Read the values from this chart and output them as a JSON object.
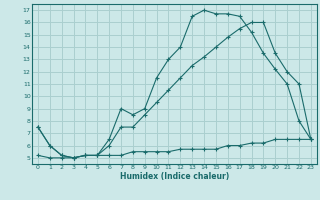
{
  "xlabel": "Humidex (Indice chaleur)",
  "bg_color": "#cce8e8",
  "line_color": "#1a6b6b",
  "grid_color": "#aacfcf",
  "xlim": [
    -0.5,
    23.5
  ],
  "ylim": [
    4.5,
    17.5
  ],
  "xticks": [
    0,
    1,
    2,
    3,
    4,
    5,
    6,
    7,
    8,
    9,
    10,
    11,
    12,
    13,
    14,
    15,
    16,
    17,
    18,
    19,
    20,
    21,
    22,
    23
  ],
  "yticks": [
    5,
    6,
    7,
    8,
    9,
    10,
    11,
    12,
    13,
    14,
    15,
    16,
    17
  ],
  "line1_x": [
    0,
    1,
    2,
    3,
    4,
    5,
    6,
    7,
    8,
    9,
    10,
    11,
    12,
    13,
    14,
    15,
    16,
    17,
    18,
    19,
    20,
    21,
    22,
    23
  ],
  "line1_y": [
    7.5,
    6.0,
    5.2,
    5.0,
    5.2,
    5.2,
    6.5,
    9.0,
    8.5,
    9.0,
    11.5,
    13.0,
    14.0,
    16.5,
    17.0,
    16.7,
    16.7,
    16.5,
    15.2,
    13.5,
    12.2,
    11.0,
    8.0,
    6.5
  ],
  "line2_x": [
    0,
    1,
    2,
    3,
    4,
    5,
    6,
    7,
    8,
    9,
    10,
    11,
    12,
    13,
    14,
    15,
    16,
    17,
    18,
    19,
    20,
    21,
    22,
    23
  ],
  "line2_y": [
    7.5,
    6.0,
    5.2,
    5.0,
    5.2,
    5.2,
    6.0,
    7.5,
    7.5,
    8.5,
    9.5,
    10.5,
    11.5,
    12.5,
    13.2,
    14.0,
    14.8,
    15.5,
    16.0,
    16.0,
    13.5,
    12.0,
    11.0,
    6.5
  ],
  "line3_x": [
    0,
    1,
    2,
    3,
    4,
    5,
    6,
    7,
    8,
    9,
    10,
    11,
    12,
    13,
    14,
    15,
    16,
    17,
    18,
    19,
    20,
    21,
    22,
    23
  ],
  "line3_y": [
    5.2,
    5.0,
    5.0,
    5.0,
    5.2,
    5.2,
    5.2,
    5.2,
    5.5,
    5.5,
    5.5,
    5.5,
    5.7,
    5.7,
    5.7,
    5.7,
    6.0,
    6.0,
    6.2,
    6.2,
    6.5,
    6.5,
    6.5,
    6.5
  ]
}
